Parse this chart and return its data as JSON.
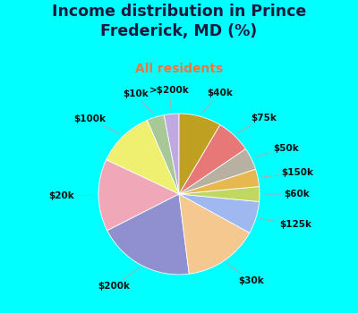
{
  "title": "Income distribution in Prince\nFrederick, MD (%)",
  "subtitle": "All residents",
  "title_color": "#1a1a3e",
  "subtitle_color": "#e87840",
  "background_outer": "#00ffff",
  "background_chart": "#d8f0e4",
  "labels": [
    ">$200k",
    "$10k",
    "$100k",
    "$20k",
    "$200k",
    "$30k",
    "$125k",
    "$60k",
    "$150k",
    "$50k",
    "$75k",
    "$40k"
  ],
  "values": [
    3.0,
    3.5,
    11.5,
    14.5,
    19.5,
    15.0,
    6.5,
    3.0,
    3.5,
    4.5,
    7.0,
    8.5
  ],
  "colors": [
    "#c0a8e0",
    "#a8c898",
    "#f0f070",
    "#f0a8b8",
    "#9090d0",
    "#f5c890",
    "#a0b8f0",
    "#c0d860",
    "#e8b850",
    "#b8b0a0",
    "#e87878",
    "#c0a020"
  ],
  "label_fontsize": 7.5,
  "title_fontsize": 12.5,
  "subtitle_fontsize": 10,
  "startangle": 90
}
